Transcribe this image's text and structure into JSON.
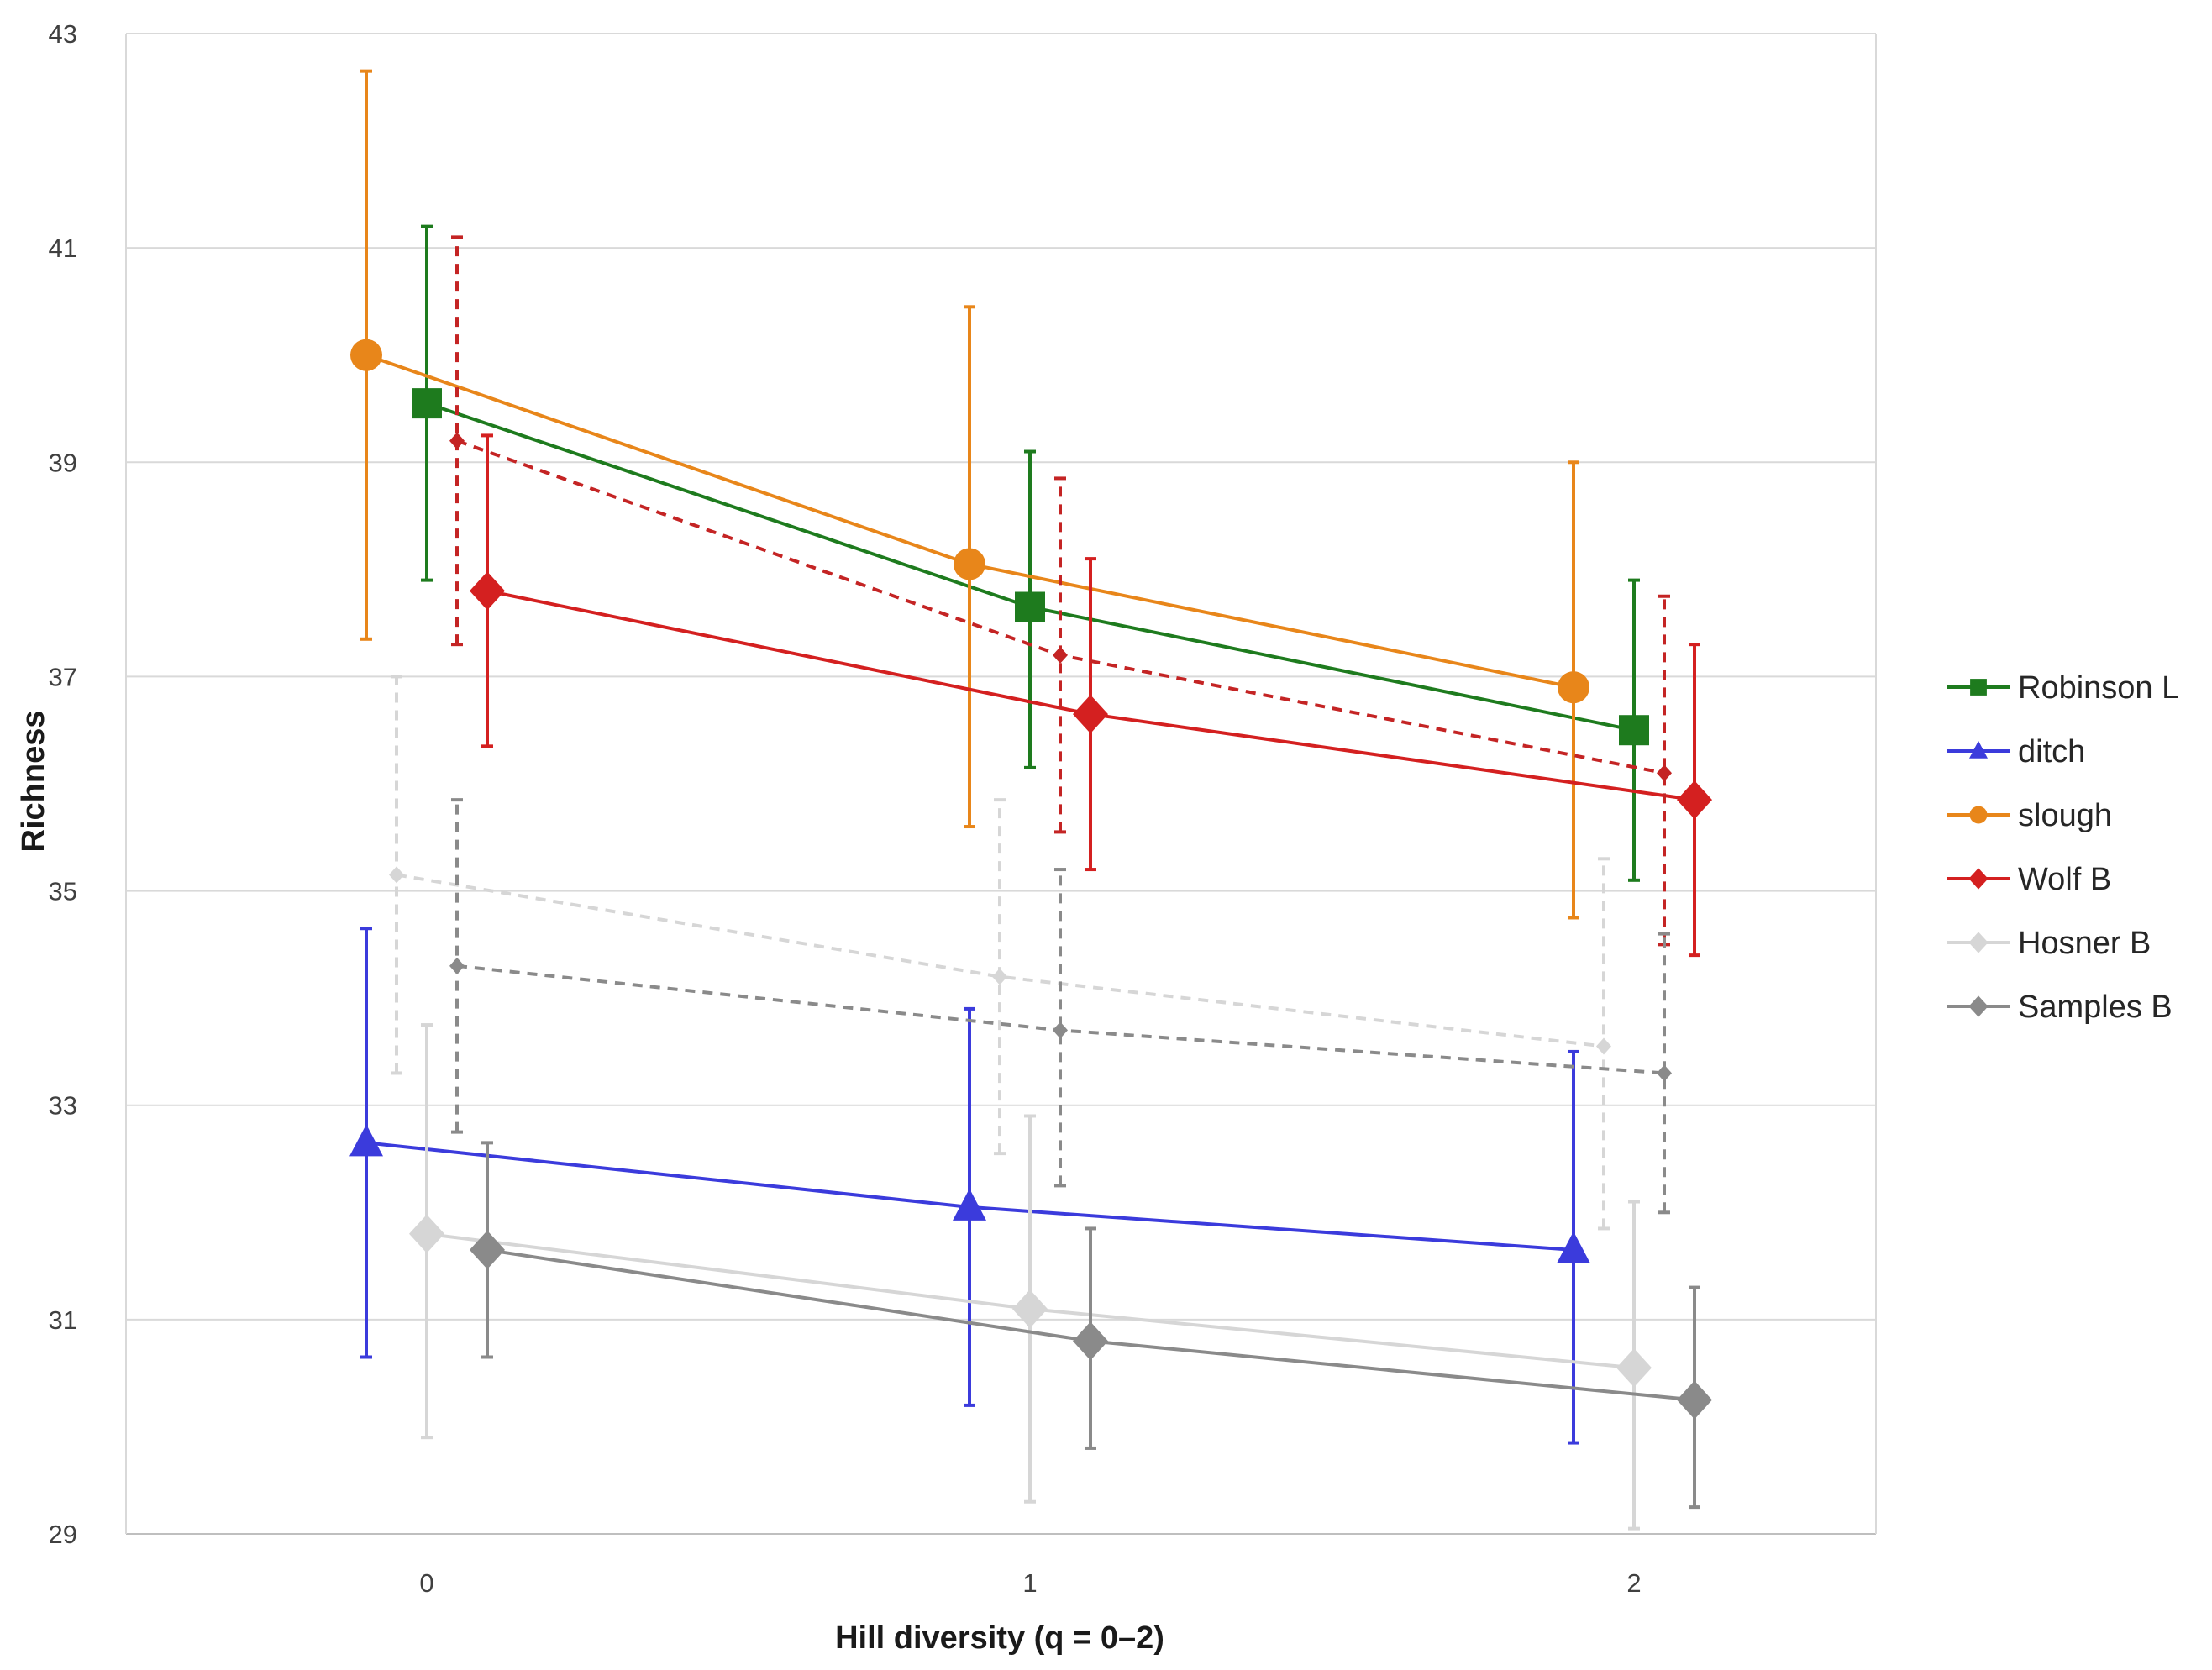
{
  "chart_data": {
    "type": "line",
    "title": "",
    "xlabel": "Hill diversity (q = 0–2)",
    "ylabel": "Richness",
    "categories": [
      "0",
      "1",
      "2"
    ],
    "x": [
      0,
      1,
      2
    ],
    "ylim": [
      29,
      43
    ],
    "yticks": [
      29,
      31,
      33,
      35,
      37,
      39,
      41,
      43
    ],
    "grid": true,
    "legend_position": "right",
    "series": [
      {
        "name": "Robinson L",
        "legend": true,
        "color": "#1e7b1e",
        "marker": "square",
        "dashed": false,
        "offset": 0.0,
        "values": [
          39.55,
          37.65,
          36.5
        ],
        "err_low": [
          37.9,
          36.15,
          35.1
        ],
        "err_high": [
          41.2,
          39.1,
          37.9
        ]
      },
      {
        "name": "ditch",
        "legend": true,
        "color": "#3b3bdc",
        "marker": "triangle",
        "dashed": false,
        "offset": -0.1,
        "values": [
          32.65,
          32.05,
          31.65
        ],
        "err_low": [
          30.65,
          30.2,
          29.85
        ],
        "err_high": [
          34.65,
          33.9,
          33.5
        ]
      },
      {
        "name": "slough",
        "legend": true,
        "color": "#e8861a",
        "marker": "circle",
        "dashed": false,
        "offset": -0.1,
        "values": [
          40.0,
          38.05,
          36.9
        ],
        "err_low": [
          37.35,
          35.6,
          34.75
        ],
        "err_high": [
          42.65,
          40.45,
          39.0
        ]
      },
      {
        "name": "Wolf B",
        "legend": true,
        "color": "#d42020",
        "marker": "diamond",
        "dashed": false,
        "offset": 0.1,
        "values": [
          37.8,
          36.65,
          35.85
        ],
        "err_low": [
          36.35,
          35.2,
          34.4
        ],
        "err_high": [
          39.25,
          38.1,
          37.3
        ]
      },
      {
        "name": "Wolf B (dashed)",
        "legend": false,
        "color": "#c42424",
        "marker": "small-diamond",
        "dashed": true,
        "offset": 0.05,
        "values": [
          39.2,
          37.2,
          36.1
        ],
        "err_low": [
          37.3,
          35.55,
          34.5
        ],
        "err_high": [
          41.1,
          38.85,
          37.75
        ]
      },
      {
        "name": "Hosner B",
        "legend": true,
        "color": "#d6d6d6",
        "marker": "diamond",
        "dashed": false,
        "offset": 0.0,
        "values": [
          31.8,
          31.1,
          30.55
        ],
        "err_low": [
          29.9,
          29.3,
          29.05
        ],
        "err_high": [
          33.75,
          32.9,
          32.1
        ]
      },
      {
        "name": "Hosner B (dashed)",
        "legend": false,
        "color": "#d6d6d6",
        "marker": "small-diamond",
        "dashed": true,
        "offset": -0.05,
        "values": [
          35.15,
          34.2,
          33.55
        ],
        "err_low": [
          33.3,
          32.55,
          31.85
        ],
        "err_high": [
          37.0,
          35.85,
          35.3
        ]
      },
      {
        "name": "Samples B",
        "legend": true,
        "color": "#8a8a8a",
        "marker": "diamond",
        "dashed": false,
        "offset": 0.1,
        "values": [
          31.65,
          30.8,
          30.25
        ],
        "err_low": [
          30.65,
          29.8,
          29.25
        ],
        "err_high": [
          32.65,
          31.85,
          31.3
        ]
      },
      {
        "name": "Samples B (dashed)",
        "legend": false,
        "color": "#8a8a8a",
        "marker": "small-diamond",
        "dashed": true,
        "offset": 0.05,
        "values": [
          34.3,
          33.7,
          33.3
        ],
        "err_low": [
          32.75,
          32.25,
          32.0
        ],
        "err_high": [
          35.85,
          35.2,
          34.6
        ]
      }
    ]
  }
}
